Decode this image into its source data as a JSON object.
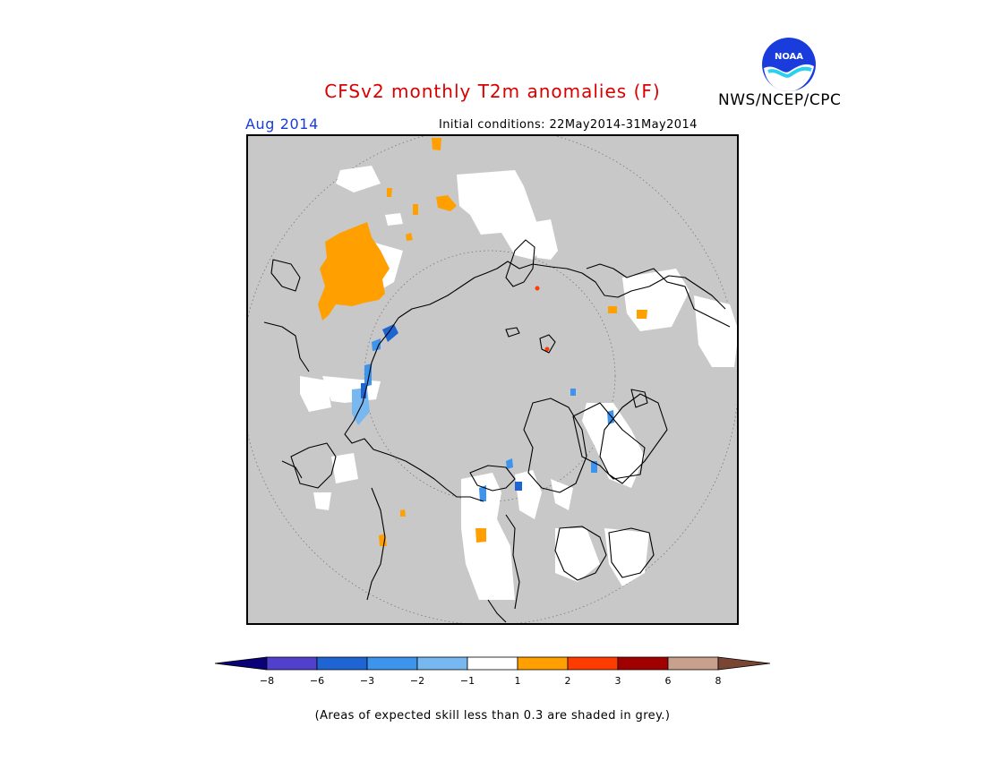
{
  "header": {
    "title": "CFSv2 monthly T2m anomalies (F)",
    "agency": "NWS/NCEP/CPC",
    "logo_text": "NOAA",
    "valid_month": "Aug 2014",
    "initial_conditions": "Initial conditions: 22May2014-31May2014"
  },
  "colorbar": {
    "ticks": [
      "-8",
      "-6",
      "-3",
      "-2",
      "-1",
      "1",
      "2",
      "3",
      "6",
      "8"
    ],
    "colors": [
      "#0a0078",
      "#5040cc",
      "#1e64d2",
      "#3c94ec",
      "#78b8f0",
      "#ffffff",
      "#ffa000",
      "#ff3c00",
      "#a00000",
      "#c8a08c",
      "#7a4634"
    ]
  },
  "colors": {
    "skill_mask": "#c8c8c8",
    "title_red": "#d80000",
    "valid_blue": "#1a3cdc"
  },
  "footnote": "(Areas of expected skill less than 0.3 are shaded in grey.)"
}
